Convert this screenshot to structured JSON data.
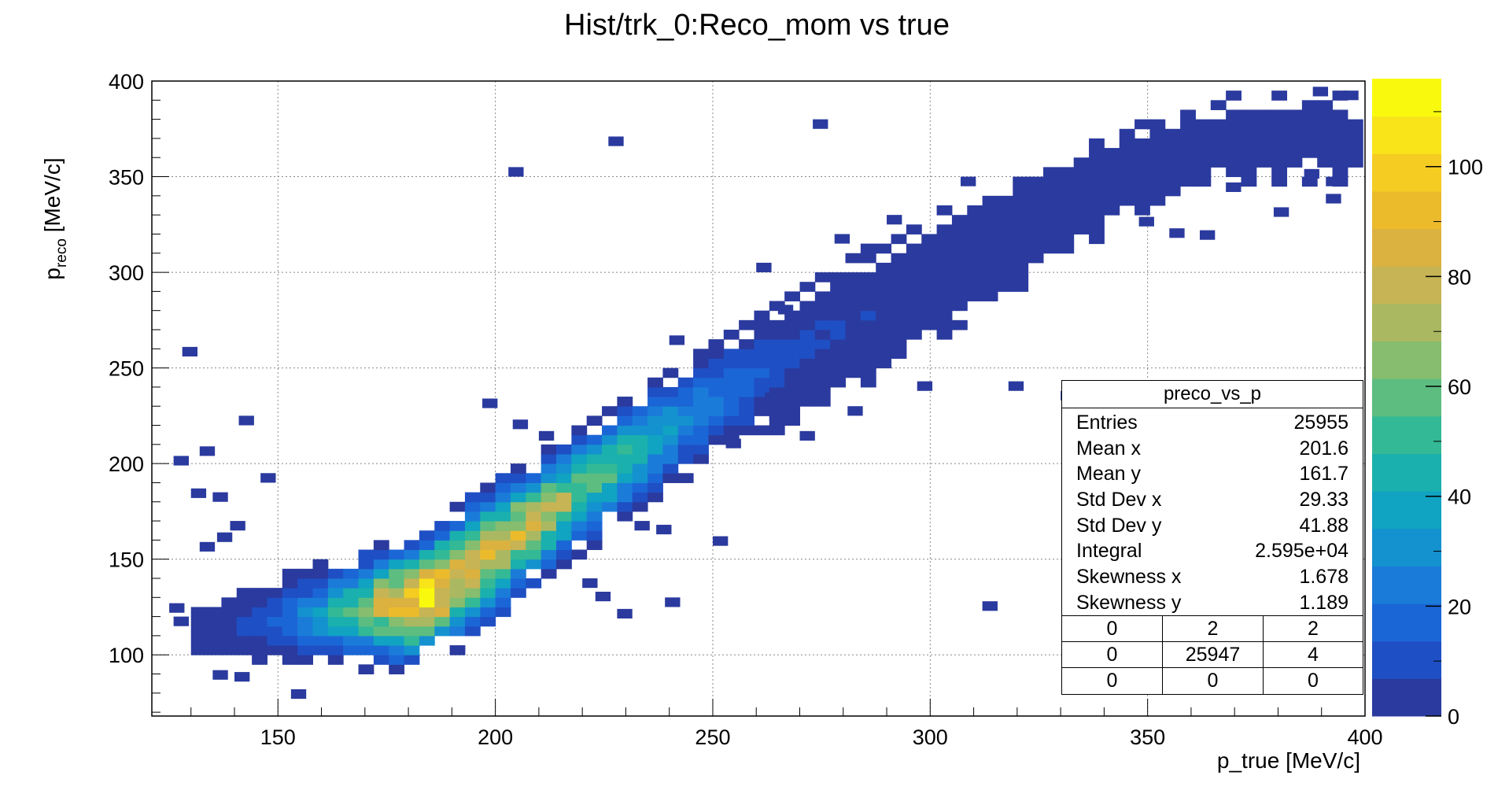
{
  "chart_data": {
    "type": "heatmap",
    "title": "Hist/trk_0:Reco_mom vs true",
    "xlabel": "p_true [MeV/c]",
    "ylabel": {
      "base": "p",
      "subscript": "reco",
      "unit": " [MeV/c]"
    },
    "xlim": [
      121,
      400
    ],
    "ylim": [
      68,
      400
    ],
    "x_ticks": [
      150,
      200,
      250,
      300,
      350,
      400
    ],
    "y_ticks": [
      100,
      150,
      200,
      250,
      300,
      350,
      400
    ],
    "grid": true,
    "colorbar": {
      "min": 0,
      "max": 116,
      "ticks": [
        0,
        20,
        40,
        60,
        80,
        100
      ]
    },
    "bin_width": [
      3.5,
      5.0
    ],
    "ridge": [
      {
        "p_true": 135,
        "p_reco_center": 112,
        "p_reco_halfwidth": 12,
        "peak_counts": 3
      },
      {
        "p_true": 150,
        "p_reco_center": 118,
        "p_reco_halfwidth": 20,
        "peak_counts": 15
      },
      {
        "p_true": 165,
        "p_reco_center": 123,
        "p_reco_halfwidth": 26,
        "peak_counts": 45
      },
      {
        "p_true": 175,
        "p_reco_center": 126,
        "p_reco_halfwidth": 30,
        "peak_counts": 80
      },
      {
        "p_true": 183,
        "p_reco_center": 128,
        "p_reco_halfwidth": 32,
        "peak_counts": 108
      },
      {
        "p_true": 190,
        "p_reco_center": 138,
        "p_reco_halfwidth": 34,
        "peak_counts": 90
      },
      {
        "p_true": 200,
        "p_reco_center": 155,
        "p_reco_halfwidth": 34,
        "peak_counts": 80
      },
      {
        "p_true": 208,
        "p_reco_center": 168,
        "p_reco_halfwidth": 32,
        "peak_counts": 78
      },
      {
        "p_true": 220,
        "p_reco_center": 187,
        "p_reco_halfwidth": 30,
        "peak_counts": 60
      },
      {
        "p_true": 235,
        "p_reco_center": 210,
        "p_reco_halfwidth": 30,
        "peak_counts": 40
      },
      {
        "p_true": 250,
        "p_reco_center": 232,
        "p_reco_halfwidth": 30,
        "peak_counts": 20
      },
      {
        "p_true": 270,
        "p_reco_center": 258,
        "p_reco_halfwidth": 30,
        "peak_counts": 8
      },
      {
        "p_true": 300,
        "p_reco_center": 295,
        "p_reco_halfwidth": 32,
        "peak_counts": 4
      },
      {
        "p_true": 340,
        "p_reco_center": 345,
        "p_reco_halfwidth": 22,
        "peak_counts": 2
      },
      {
        "p_true": 365,
        "p_reco_center": 370,
        "p_reco_halfwidth": 20,
        "peak_counts": 1
      }
    ],
    "isolated_bins": [
      [
        203,
        350
      ],
      [
        226,
        366
      ],
      [
        273,
        375
      ],
      [
        307,
        345
      ],
      [
        290,
        325
      ],
      [
        278,
        315
      ],
      [
        260,
        300
      ],
      [
        265,
        278
      ],
      [
        240,
        262
      ],
      [
        262,
        232
      ],
      [
        253,
        208
      ],
      [
        263,
        222
      ],
      [
        270,
        212
      ],
      [
        281,
        225
      ],
      [
        297,
        238
      ],
      [
        318,
        238
      ],
      [
        348,
        324
      ],
      [
        355,
        318
      ],
      [
        362,
        317
      ],
      [
        368,
        342
      ],
      [
        391,
        345
      ],
      [
        391,
        336
      ],
      [
        386,
        349
      ],
      [
        379,
        329
      ],
      [
        337,
        341
      ],
      [
        372,
        355
      ],
      [
        381,
        360
      ],
      [
        395,
        390
      ],
      [
        388,
        392
      ],
      [
        377,
        379
      ],
      [
        356,
        359
      ],
      [
        312,
        123
      ],
      [
        250,
        157
      ],
      [
        237,
        163
      ],
      [
        239,
        125
      ],
      [
        228,
        119
      ],
      [
        223,
        128
      ],
      [
        220,
        135
      ],
      [
        232,
        165
      ],
      [
        128,
        256
      ],
      [
        141,
        220
      ],
      [
        126,
        199
      ],
      [
        132,
        204
      ],
      [
        130,
        182
      ],
      [
        135,
        180
      ],
      [
        146,
        190
      ],
      [
        139,
        165
      ],
      [
        136,
        159
      ],
      [
        132,
        154
      ],
      [
        125,
        122
      ],
      [
        126,
        115
      ],
      [
        135,
        87
      ],
      [
        140,
        86
      ],
      [
        153,
        77
      ],
      [
        197,
        229
      ],
      [
        204,
        218
      ],
      [
        210,
        212
      ],
      [
        330,
        233
      ]
    ]
  },
  "stats": {
    "title": "preco_vs_p",
    "rows": [
      {
        "label": "Entries",
        "value": "25955"
      },
      {
        "label": "Mean x",
        "value": "201.6"
      },
      {
        "label": "Mean y",
        "value": "161.7"
      },
      {
        "label": "Std Dev x",
        "value": "29.33"
      },
      {
        "label": "Std Dev y",
        "value": "41.88"
      },
      {
        "label": "Integral",
        "value": "2.595e+04"
      },
      {
        "label": "Skewness x",
        "value": "1.678"
      },
      {
        "label": "Skewness y",
        "value": "1.189"
      }
    ],
    "overflow_grid": [
      [
        "0",
        "2",
        "2"
      ],
      [
        "0",
        "25947",
        "4"
      ],
      [
        "0",
        "0",
        "0"
      ]
    ]
  },
  "colors": {
    "palette": [
      "#2b3a9e",
      "#1f4fc4",
      "#1b66d6",
      "#1a7cd8",
      "#1492cf",
      "#10a3c2",
      "#1ab0ad",
      "#33b996",
      "#5dbd80",
      "#86bd6e",
      "#aab961",
      "#c6b455",
      "#dbb240",
      "#ecbb2c",
      "#f5cc22",
      "#f8e419",
      "#f9f90e"
    ]
  }
}
